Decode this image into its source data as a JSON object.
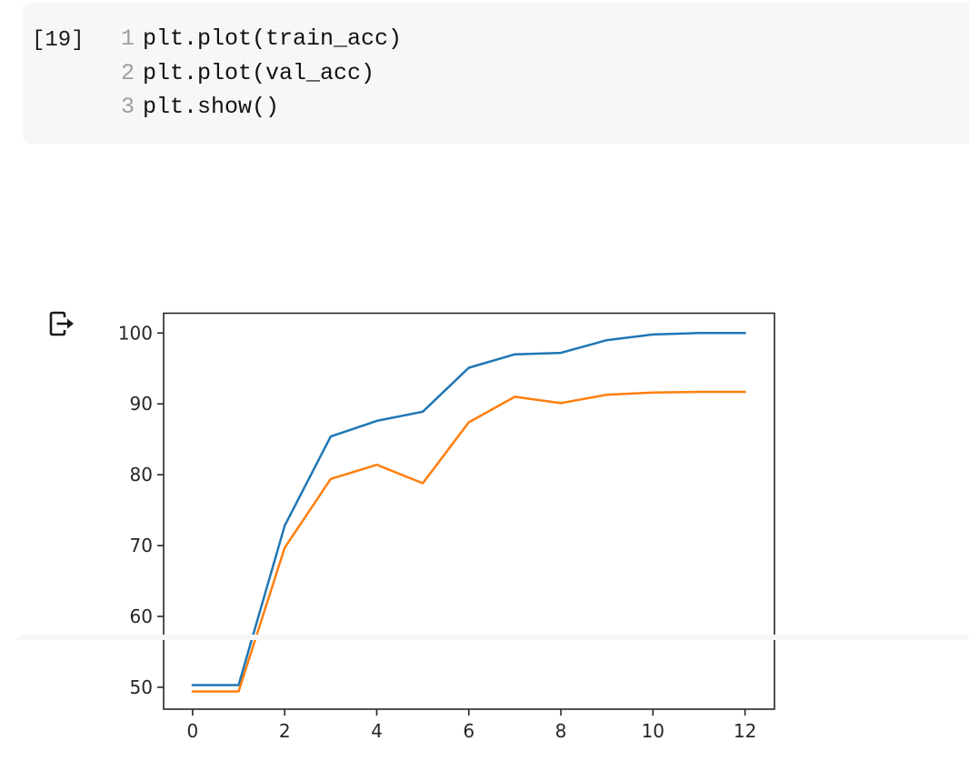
{
  "cell": {
    "execution_count": "[19]",
    "code_lines": [
      {
        "number": "1",
        "code": "plt.plot(train_acc)"
      },
      {
        "number": "2",
        "code": "plt.plot(val_acc)"
      },
      {
        "number": "3",
        "code": "plt.show()"
      }
    ]
  },
  "output": {
    "icon": "cell-output-icon"
  },
  "chart_data": {
    "type": "line",
    "title": "",
    "xlabel": "",
    "ylabel": "",
    "x": [
      0,
      1,
      2,
      3,
      4,
      5,
      6,
      7,
      8,
      9,
      10,
      11,
      12
    ],
    "series": [
      {
        "name": "train_acc",
        "color": "#1f77b4",
        "values": [
          50.3,
          50.3,
          72.8,
          85.4,
          87.6,
          88.9,
          95.1,
          97.0,
          97.2,
          99.0,
          99.8,
          100.0,
          100.0
        ]
      },
      {
        "name": "val_acc",
        "color": "#ff7f0e",
        "values": [
          49.4,
          49.4,
          69.7,
          79.4,
          81.4,
          78.8,
          87.4,
          91.0,
          90.1,
          91.3,
          91.6,
          91.7,
          91.7
        ]
      }
    ],
    "xticks": [
      0,
      2,
      4,
      6,
      8,
      10,
      12
    ],
    "yticks": [
      50,
      60,
      70,
      80,
      90,
      100
    ],
    "xlim": [
      -0.63,
      12.64
    ],
    "ylim": [
      46.9,
      102.8
    ],
    "grid": false,
    "legend": "none"
  },
  "colors": {
    "cell_background": "#f7f7f7",
    "line_number": "#9e9e9e",
    "code_text": "#111111",
    "axis": "#262626",
    "train_line": "#1f77b4",
    "val_line": "#ff7f0e"
  }
}
